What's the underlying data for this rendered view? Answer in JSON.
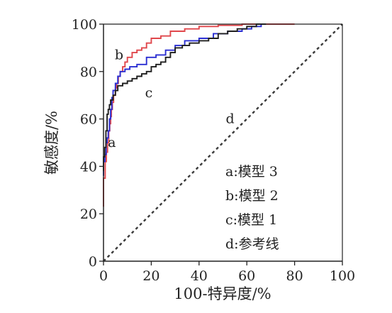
{
  "chart_data": {
    "type": "line",
    "title": "",
    "xlabel": "100-特异度/%",
    "ylabel": "敏感度/%",
    "xlim": [
      0,
      100
    ],
    "ylim": [
      0,
      100
    ],
    "x_ticks": [
      "0",
      "20",
      "40",
      "60",
      "80",
      "100"
    ],
    "y_ticks": [
      "0",
      "20",
      "40",
      "60",
      "80",
      "100"
    ],
    "grid": false,
    "legend_position": "lower-right",
    "legend_entries": [
      {
        "key": "a",
        "label": "a:模型 3"
      },
      {
        "key": "b",
        "label": "b:模型 2"
      },
      {
        "key": "c",
        "label": "c:模型 1"
      },
      {
        "key": "d",
        "label": "d:参考线"
      }
    ],
    "series": [
      {
        "key": "b",
        "color": "#e0474c",
        "dashed": false,
        "annotation": {
          "text": "b",
          "at": [
            6.5,
            87
          ]
        },
        "x": [
          0,
          0,
          0.7,
          0.7,
          1.2,
          1.2,
          1.7,
          1.7,
          2.2,
          2.2,
          2.6,
          2.6,
          3,
          3,
          3.3,
          3.3,
          3.7,
          3.7,
          4.2,
          4.2,
          5,
          5,
          5.5,
          5.5,
          6.2,
          6.2,
          7,
          7,
          8,
          8,
          9,
          9,
          10,
          10,
          12,
          12,
          14,
          14,
          16,
          16,
          18,
          18,
          20,
          20,
          24,
          24,
          28,
          28,
          34,
          34,
          40,
          40,
          48,
          48,
          58,
          58,
          70,
          70,
          80,
          80
        ],
        "y": [
          23,
          35,
          35,
          42,
          42,
          46,
          46,
          50,
          50,
          55,
          55,
          58,
          58,
          61,
          61,
          64,
          64,
          67,
          67,
          70,
          70,
          73,
          73,
          75,
          75,
          78,
          78,
          80,
          80,
          82,
          82,
          84,
          84,
          86,
          86,
          88,
          88,
          89,
          89,
          90,
          90,
          92,
          92,
          94,
          94,
          95,
          95,
          97,
          97,
          98,
          98,
          99,
          99,
          99.5,
          99.5,
          100,
          100,
          100,
          100,
          100
        ]
      },
      {
        "key": "a",
        "color": "#2a2ed2",
        "dashed": false,
        "annotation": {
          "text": "a",
          "at": [
            3.5,
            50
          ]
        },
        "x": [
          0,
          0,
          0.6,
          0.6,
          1.1,
          1.1,
          1.5,
          1.5,
          2,
          2,
          2.5,
          2.5,
          3,
          3,
          3.5,
          3.5,
          4,
          4,
          5,
          5,
          6,
          6,
          7,
          7,
          9,
          9,
          11,
          11,
          14,
          14,
          18,
          18,
          22,
          22,
          26,
          26,
          30,
          30,
          34,
          34,
          40,
          40,
          46,
          46,
          52,
          52,
          58,
          58,
          62,
          62,
          66,
          66,
          68
        ],
        "y": [
          36,
          42,
          42,
          45,
          45,
          50,
          50,
          52,
          52,
          55,
          55,
          60,
          60,
          64,
          64,
          69,
          69,
          72,
          72,
          75,
          75,
          78,
          78,
          80,
          80,
          81,
          81,
          82,
          82,
          83,
          83,
          86,
          86,
          87,
          87,
          89,
          89,
          91,
          91,
          93,
          93,
          94,
          94,
          96,
          96,
          97,
          97,
          98,
          98,
          99,
          99,
          100,
          100
        ]
      },
      {
        "key": "c",
        "color": "#1e1e1e",
        "dashed": false,
        "annotation": {
          "text": "c",
          "at": [
            19,
            71
          ]
        },
        "x": [
          0,
          0,
          0.5,
          0.5,
          1,
          1,
          1.5,
          1.5,
          2,
          2,
          2.5,
          2.5,
          3,
          3,
          4,
          4,
          5,
          5,
          6,
          6,
          8,
          8,
          10,
          10,
          12,
          12,
          14,
          14,
          16,
          16,
          18,
          18,
          20,
          20,
          22,
          22,
          24,
          24,
          26,
          26,
          28,
          28,
          30,
          30,
          33,
          33,
          36,
          36,
          40,
          40,
          44,
          44,
          48,
          48,
          52,
          52,
          56,
          56,
          60,
          60,
          64,
          64,
          68,
          68
        ],
        "y": [
          38,
          44,
          44,
          48,
          48,
          55,
          55,
          62,
          62,
          64,
          64,
          66,
          66,
          68,
          68,
          70,
          70,
          72,
          72,
          74,
          74,
          75,
          75,
          76,
          76,
          77,
          77,
          78,
          78,
          79,
          79,
          80,
          80,
          82,
          82,
          83,
          83,
          84,
          84,
          86,
          86,
          88,
          88,
          90,
          90,
          91,
          91,
          92,
          92,
          93,
          93,
          94,
          94,
          96,
          96,
          97,
          97,
          98,
          98,
          99,
          99,
          100,
          100,
          100
        ]
      },
      {
        "key": "d",
        "color": "#3a3a3a",
        "dashed": true,
        "annotation": {
          "text": "d",
          "at": [
            53,
            60
          ]
        },
        "x": [
          0,
          100
        ],
        "y": [
          0,
          100
        ]
      }
    ]
  }
}
